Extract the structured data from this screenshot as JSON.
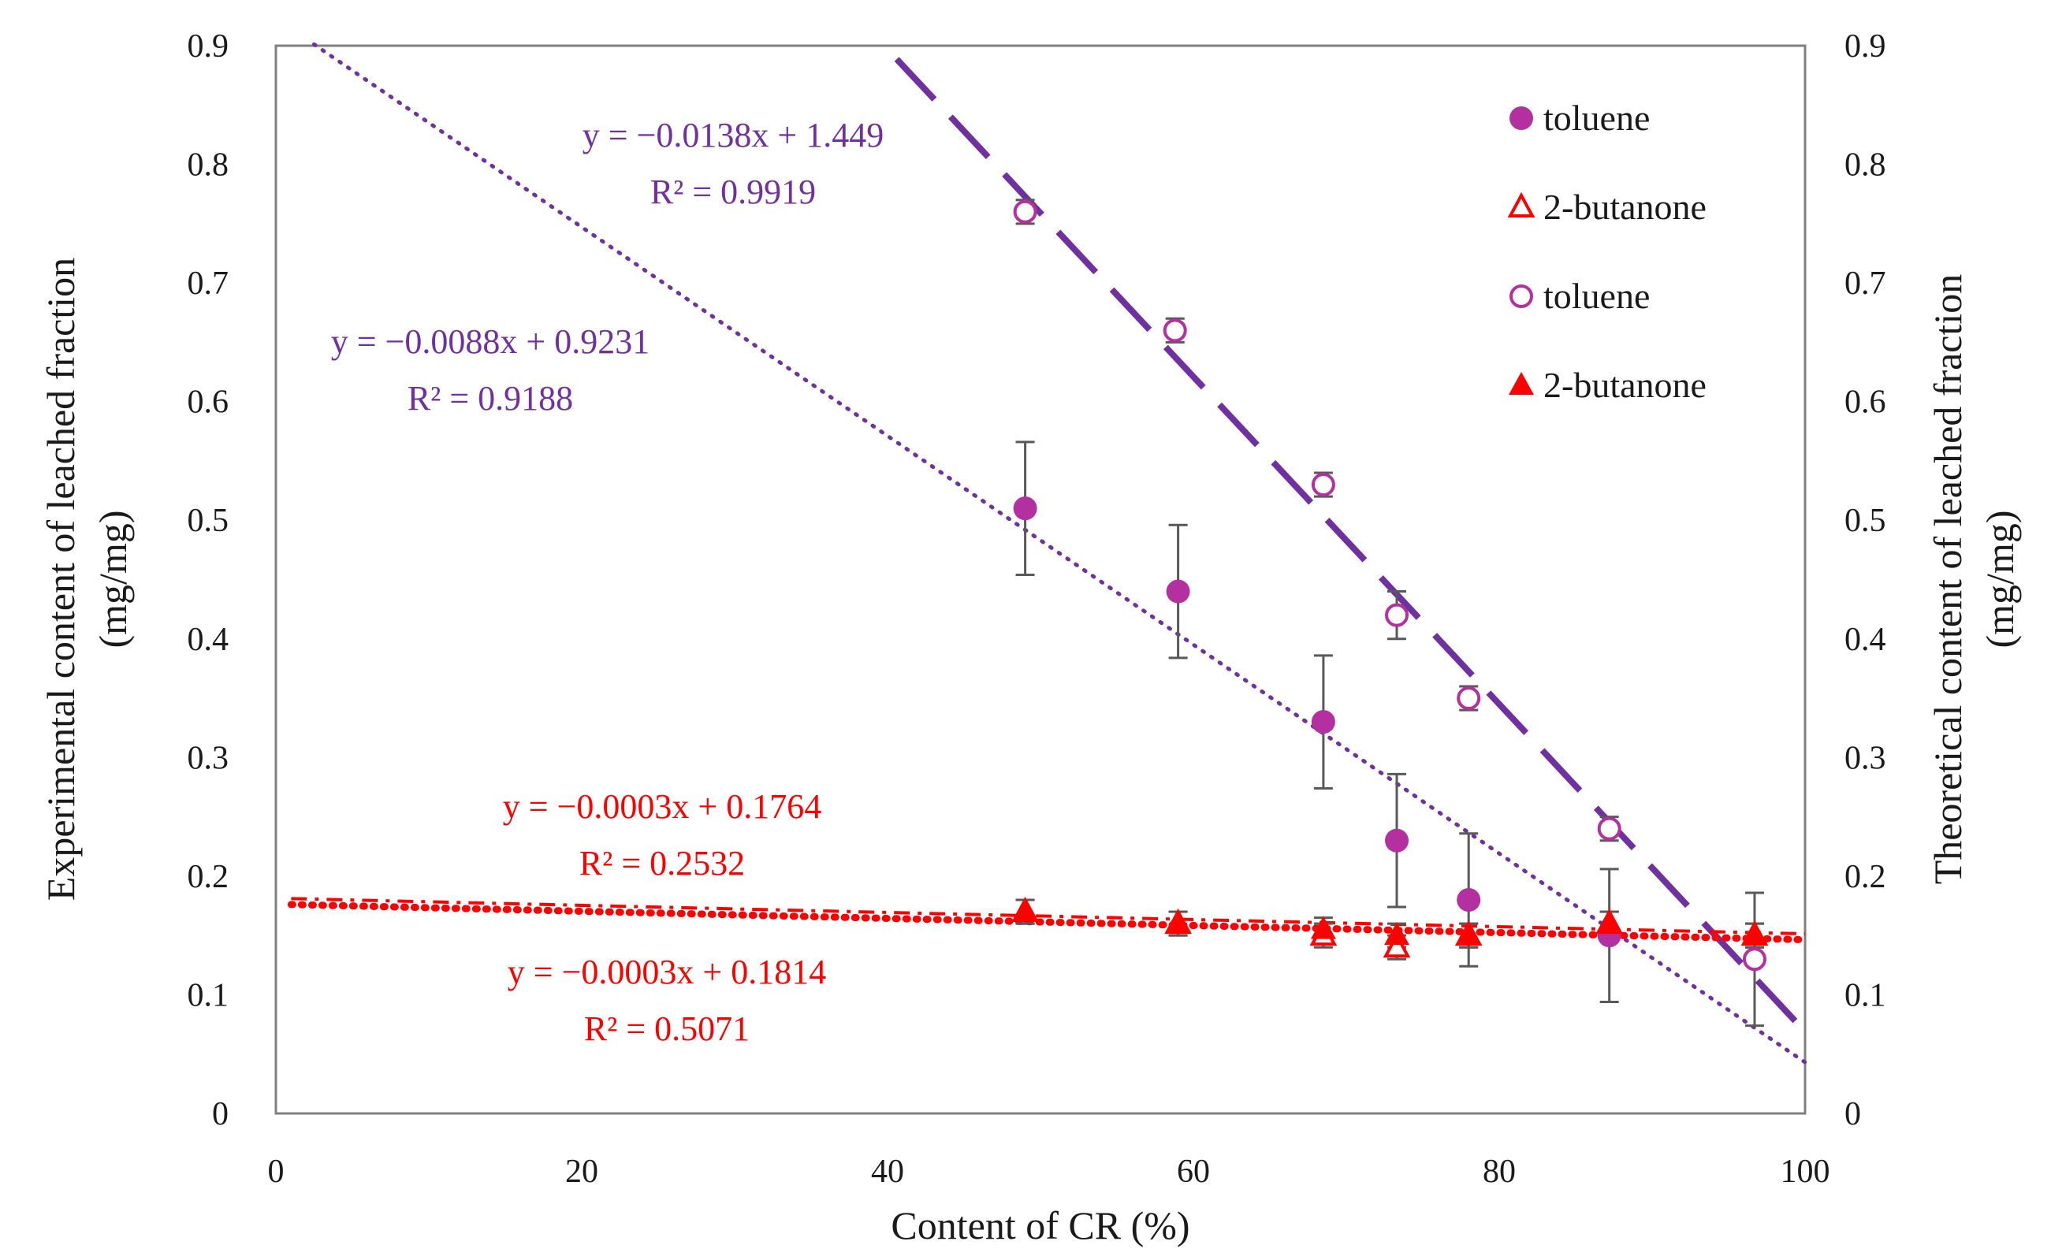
{
  "chart_data": {
    "type": "scatter",
    "title": "",
    "xlabel": "Content of CR (%)",
    "ylabel_lines": [
      "Experimental content of leached fraction",
      "(mg/mg)"
    ],
    "y2label_lines": [
      "Theoretical content of leached fraction",
      "(mg/mg)"
    ],
    "xlim": [
      0,
      100
    ],
    "ylim": [
      0,
      0.9
    ],
    "y2lim": [
      0,
      0.9
    ],
    "x_ticks": [
      "0",
      "20",
      "40",
      "60",
      "80",
      "100"
    ],
    "y_ticks": [
      "0",
      "0.1",
      "0.2",
      "0.3",
      "0.4",
      "0.5",
      "0.6",
      "0.7",
      "0.8",
      "0.9"
    ],
    "y2_ticks": [
      "0",
      "0.1",
      "0.2",
      "0.3",
      "0.4",
      "0.5",
      "0.6",
      "0.7",
      "0.8",
      "0.9"
    ],
    "grid": false,
    "legend_position": "top-right",
    "legend": [
      {
        "label": "toluene",
        "series": 0
      },
      {
        "label": "2-butanone",
        "series": 1
      },
      {
        "label": "toluene",
        "series": 2
      },
      {
        "label": "2-butanone",
        "series": 3
      }
    ],
    "series": [
      {
        "name": "toluene",
        "marker": "filled-circle",
        "color": "#b42fa0",
        "axis": "left",
        "x": [
          49,
          59,
          68.5,
          73.3,
          78,
          87.2
        ],
        "y": [
          0.51,
          0.44,
          0.33,
          0.23,
          0.18,
          0.15
        ],
        "error": [
          0.056,
          0.056,
          0.056,
          0.056,
          0.056,
          0.056
        ]
      },
      {
        "name": "2-butanone",
        "marker": "open-triangle",
        "color": "#ff0000",
        "axis": "right",
        "x": [
          49,
          59,
          68.5,
          73.3,
          78,
          87.2,
          96.7
        ],
        "y": [
          0.17,
          0.16,
          0.15,
          0.14,
          0.15,
          0.16,
          0.15
        ],
        "error": [
          0.01,
          0.01,
          0.01,
          0.01,
          0.01,
          0.01,
          0.01
        ]
      },
      {
        "name": "toluene",
        "marker": "open-circle",
        "color": "#b42fa0",
        "axis": "right",
        "x": [
          49,
          58.8,
          68.5,
          73.3,
          78,
          87.2,
          96.7
        ],
        "y": [
          0.76,
          0.66,
          0.53,
          0.42,
          0.35,
          0.24,
          0.13
        ],
        "error": [
          0.01,
          0.01,
          0.01,
          0.02,
          0.01,
          0.01,
          0.056
        ]
      },
      {
        "name": "2-butanone",
        "marker": "filled-triangle",
        "color": "#ff0000",
        "axis": "left",
        "x": [
          49,
          59,
          68.5,
          73.3,
          78,
          87.2,
          96.7
        ],
        "y": [
          0.17,
          0.16,
          0.155,
          0.15,
          0.15,
          0.16,
          0.15
        ],
        "error": [
          0.01,
          0.01,
          0.01,
          0.01,
          0.01,
          0.01,
          0.01
        ]
      }
    ],
    "trendlines": [
      {
        "name": "toluene theoretical fit",
        "style": "long-dash",
        "color": "#7030a0",
        "slope": -0.0138,
        "intercept": 1.449,
        "x_range": [
          40.6,
          100
        ]
      },
      {
        "name": "toluene experimental fit",
        "style": "dotted",
        "color": "#7030a0",
        "slope": -0.0088,
        "intercept": 0.9231,
        "x_range": [
          2.5,
          100
        ]
      },
      {
        "name": "2-butanone fit 1",
        "style": "dotted",
        "color": "#ff0000",
        "slope": -0.0003,
        "intercept": 0.1764,
        "x_range": [
          1,
          100
        ]
      },
      {
        "name": "2-butanone fit 2",
        "style": "dash-dot",
        "color": "#ff0000",
        "slope": -0.0003,
        "intercept": 0.1814,
        "x_range": [
          1,
          100
        ]
      }
    ],
    "annotations": [
      {
        "eq": "y = −0.0138x + 1.449",
        "r2": "R² = 0.9919",
        "color": "#7030a0"
      },
      {
        "eq": "y = −0.0088x + 0.9231",
        "r2": "R² = 0.9188",
        "color": "#7030a0"
      },
      {
        "eq": "y = −0.0003x + 0.1764",
        "r2": "R² = 0.2532",
        "color": "#ff0000"
      },
      {
        "eq": "y = −0.0003x + 0.1814",
        "r2": "R² = 0.5071",
        "color": "#ff0000"
      }
    ]
  }
}
